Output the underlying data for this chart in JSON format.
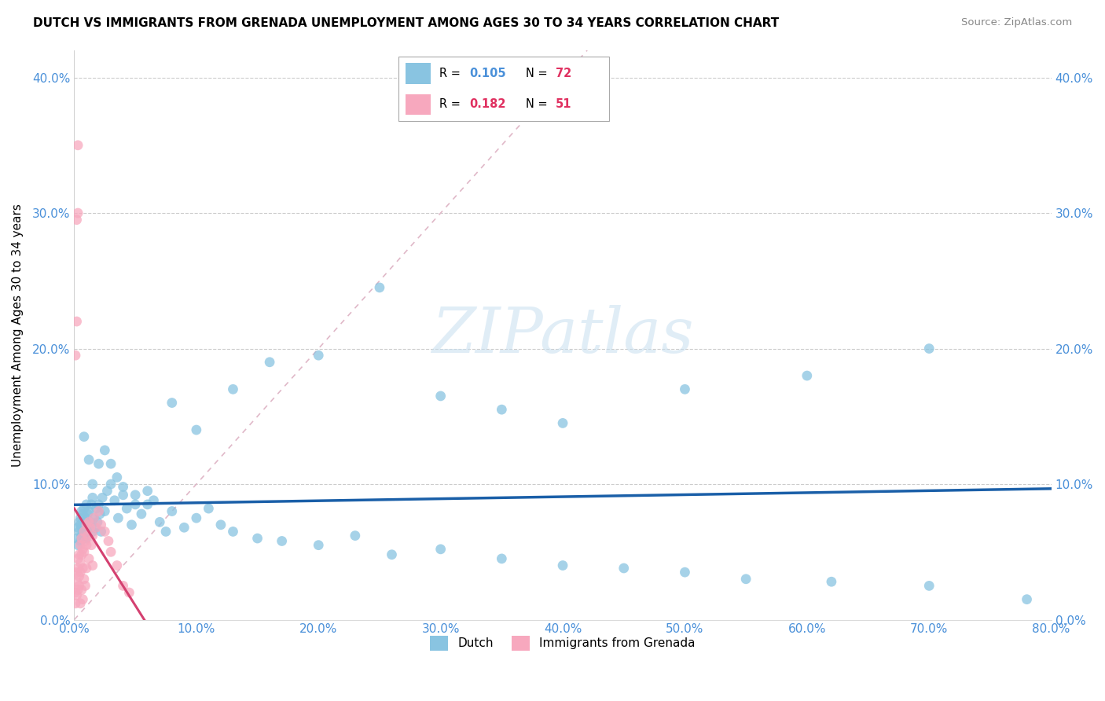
{
  "title": "DUTCH VS IMMIGRANTS FROM GRENADA UNEMPLOYMENT AMONG AGES 30 TO 34 YEARS CORRELATION CHART",
  "source": "Source: ZipAtlas.com",
  "ylabel_label": "Unemployment Among Ages 30 to 34 years",
  "legend_r1": "0.105",
  "legend_n1": "72",
  "legend_r2": "0.182",
  "legend_n2": "51",
  "blue_scatter_color": "#89c4e1",
  "pink_scatter_color": "#f7a8be",
  "blue_line_color": "#1a5fa8",
  "pink_line_color": "#d44070",
  "diag_color": "#e0b0c0",
  "tick_color": "#4a90d9",
  "r1_color": "#4a90d9",
  "n1_color": "#e03060",
  "r2_color": "#e03060",
  "n2_color": "#e03060",
  "dutch_x": [
    0.002,
    0.003,
    0.003,
    0.004,
    0.004,
    0.005,
    0.005,
    0.005,
    0.006,
    0.006,
    0.006,
    0.007,
    0.007,
    0.007,
    0.008,
    0.008,
    0.008,
    0.009,
    0.009,
    0.01,
    0.01,
    0.01,
    0.011,
    0.011,
    0.012,
    0.012,
    0.013,
    0.014,
    0.015,
    0.015,
    0.016,
    0.017,
    0.018,
    0.019,
    0.02,
    0.021,
    0.022,
    0.023,
    0.025,
    0.027,
    0.03,
    0.033,
    0.036,
    0.04,
    0.043,
    0.047,
    0.05,
    0.055,
    0.06,
    0.065,
    0.07,
    0.075,
    0.08,
    0.09,
    0.1,
    0.11,
    0.12,
    0.13,
    0.15,
    0.17,
    0.2,
    0.23,
    0.26,
    0.3,
    0.35,
    0.4,
    0.45,
    0.5,
    0.55,
    0.62,
    0.7,
    0.78
  ],
  "dutch_y": [
    0.06,
    0.055,
    0.068,
    0.072,
    0.065,
    0.058,
    0.07,
    0.075,
    0.062,
    0.068,
    0.08,
    0.065,
    0.072,
    0.078,
    0.06,
    0.07,
    0.082,
    0.068,
    0.075,
    0.06,
    0.072,
    0.085,
    0.065,
    0.078,
    0.068,
    0.08,
    0.072,
    0.085,
    0.065,
    0.09,
    0.075,
    0.068,
    0.082,
    0.072,
    0.085,
    0.078,
    0.065,
    0.09,
    0.08,
    0.095,
    0.1,
    0.088,
    0.075,
    0.092,
    0.082,
    0.07,
    0.085,
    0.078,
    0.095,
    0.088,
    0.072,
    0.065,
    0.08,
    0.068,
    0.075,
    0.082,
    0.07,
    0.065,
    0.06,
    0.058,
    0.055,
    0.062,
    0.048,
    0.052,
    0.045,
    0.04,
    0.038,
    0.035,
    0.03,
    0.028,
    0.025,
    0.015
  ],
  "dutch_x2": [
    0.008,
    0.012,
    0.015,
    0.02,
    0.025,
    0.03,
    0.035,
    0.04,
    0.05,
    0.06,
    0.08,
    0.1,
    0.13,
    0.16,
    0.2,
    0.25,
    0.3,
    0.35,
    0.4,
    0.5,
    0.6,
    0.7
  ],
  "dutch_y2": [
    0.135,
    0.118,
    0.1,
    0.115,
    0.125,
    0.115,
    0.105,
    0.098,
    0.092,
    0.085,
    0.16,
    0.14,
    0.17,
    0.19,
    0.195,
    0.245,
    0.165,
    0.155,
    0.145,
    0.17,
    0.18,
    0.2
  ],
  "grenada_x": [
    0.001,
    0.001,
    0.002,
    0.002,
    0.002,
    0.003,
    0.003,
    0.003,
    0.004,
    0.004,
    0.004,
    0.005,
    0.005,
    0.005,
    0.005,
    0.006,
    0.006,
    0.006,
    0.007,
    0.007,
    0.007,
    0.008,
    0.008,
    0.008,
    0.009,
    0.009,
    0.01,
    0.01,
    0.01,
    0.011,
    0.012,
    0.012,
    0.013,
    0.014,
    0.015,
    0.015,
    0.016,
    0.018,
    0.02,
    0.022,
    0.025,
    0.028,
    0.03,
    0.035,
    0.04,
    0.045,
    0.001,
    0.002,
    0.002,
    0.003,
    0.003
  ],
  "grenada_y": [
    0.02,
    0.012,
    0.028,
    0.035,
    0.018,
    0.038,
    0.045,
    0.022,
    0.032,
    0.048,
    0.025,
    0.055,
    0.042,
    0.035,
    0.012,
    0.06,
    0.048,
    0.022,
    0.052,
    0.038,
    0.015,
    0.065,
    0.05,
    0.03,
    0.058,
    0.025,
    0.07,
    0.055,
    0.038,
    0.062,
    0.072,
    0.045,
    0.068,
    0.055,
    0.062,
    0.04,
    0.075,
    0.068,
    0.08,
    0.07,
    0.065,
    0.058,
    0.05,
    0.04,
    0.025,
    0.02,
    0.195,
    0.22,
    0.295,
    0.35,
    0.3
  ],
  "xlim": [
    0.0,
    0.8
  ],
  "ylim": [
    0.0,
    0.42
  ],
  "grid_yticks": [
    0.0,
    0.1,
    0.2,
    0.3,
    0.4
  ],
  "ytick_labels": [
    "0.0%",
    "10.0%",
    "20.0%",
    "30.0%",
    "40.0%"
  ],
  "xtick_positions": [
    0.0,
    0.1,
    0.2,
    0.3,
    0.4,
    0.5,
    0.6,
    0.7,
    0.8
  ],
  "xtick_labels": [
    "0.0%",
    "10.0%",
    "20.0%",
    "30.0%",
    "40.0%",
    "50.0%",
    "60.0%",
    "70.0%",
    "80.0%"
  ],
  "watermark_text": "ZIPatlas"
}
